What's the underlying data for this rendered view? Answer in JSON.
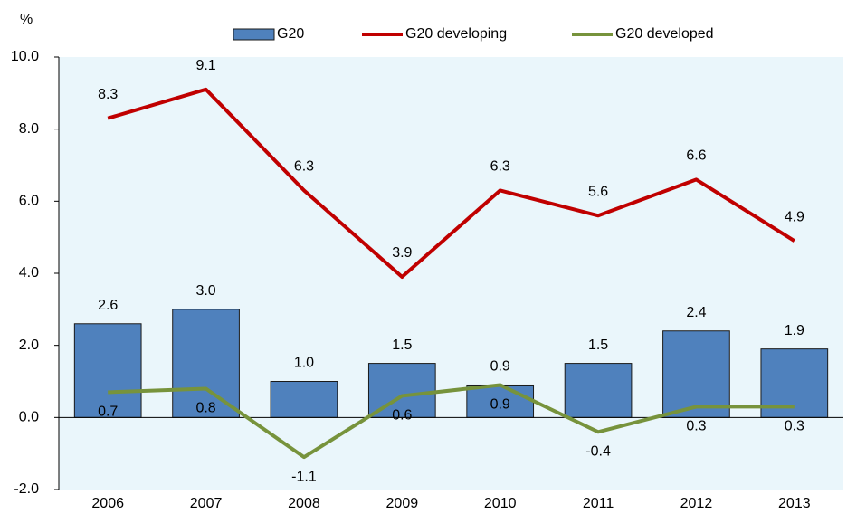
{
  "chart_data": {
    "type": "bar_line",
    "y_label": "%",
    "categories": [
      "2006",
      "2007",
      "2008",
      "2009",
      "2010",
      "2011",
      "2012",
      "2013"
    ],
    "series": [
      {
        "name": "G20",
        "type": "bar",
        "color": "#4f81bd",
        "values": [
          2.6,
          3.0,
          1.0,
          1.5,
          0.9,
          1.5,
          2.4,
          1.9
        ],
        "value_labels": [
          "2.6",
          "3.0",
          "1.0",
          "1.5",
          "0.9",
          "1.5",
          "2.4",
          "1.9"
        ]
      },
      {
        "name": "G20 developing",
        "type": "line",
        "color": "#c00000",
        "values": [
          8.3,
          9.1,
          6.3,
          3.9,
          6.3,
          5.6,
          6.6,
          4.9
        ],
        "value_labels": [
          "8.3",
          "9.1",
          "6.3",
          "3.9",
          "6.3",
          "5.6",
          "6.6",
          "4.9"
        ]
      },
      {
        "name": "G20 developed",
        "type": "line",
        "color": "#77933c",
        "values": [
          0.7,
          0.8,
          -1.1,
          0.6,
          0.9,
          -0.4,
          0.3,
          0.3
        ],
        "value_labels": [
          "0.7",
          "0.8",
          "-1.1",
          "0.6",
          "0.9",
          "-0.4",
          "0.3",
          "0.3"
        ]
      }
    ],
    "ylim": [
      -2,
      10
    ],
    "yticks": [
      {
        "value": -2,
        "label": "-2.0"
      },
      {
        "value": 0,
        "label": "0.0"
      },
      {
        "value": 2,
        "label": "2.0"
      },
      {
        "value": 4,
        "label": "4.0"
      },
      {
        "value": 6,
        "label": "6.0"
      },
      {
        "value": 8,
        "label": "8.0"
      },
      {
        "value": 10,
        "label": "10.0"
      }
    ],
    "background": "#eaf6fb"
  }
}
